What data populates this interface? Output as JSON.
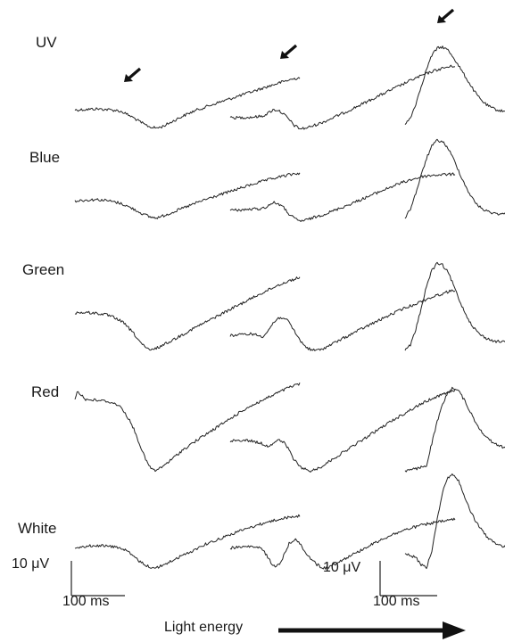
{
  "chart_data": {
    "type": "line",
    "row_labels": [
      "UV",
      "Blue",
      "Green",
      "Red",
      "White"
    ],
    "scale_bar_left": {
      "amplitude_label": "10 μV",
      "time_label": "100 ms"
    },
    "scale_bar_right": {
      "amplitude_label": "10 μV",
      "time_label": "100 ms"
    },
    "energy_axis_label": "Light energy",
    "trace_color": "#222222",
    "arrow_markers": [
      {
        "row": "UV",
        "column": 1
      },
      {
        "row": "UV",
        "column": 2
      },
      {
        "row": "UV",
        "column": 3
      }
    ],
    "traces": [
      {
        "row": "UV",
        "column": 1,
        "t": [
          0,
          20,
          40,
          60,
          80,
          90,
          100,
          110,
          120,
          130,
          140,
          150,
          160,
          170,
          180,
          190,
          200,
          210,
          220,
          230,
          240,
          260,
          280,
          300,
          320,
          340,
          360,
          380,
          400,
          420
        ],
        "v": [
          4.3,
          4.4,
          4.6,
          4.4,
          4.1,
          3.6,
          2.8,
          2.0,
          1.0,
          0.1,
          -0.6,
          -0.9,
          -0.7,
          0.0,
          0.8,
          1.6,
          2.4,
          3.1,
          3.8,
          4.4,
          4.9,
          6.0,
          7.0,
          8.0,
          9.0,
          10.0,
          11.0,
          12.0,
          12.9,
          13.6
        ]
      },
      {
        "row": "UV",
        "column": 2,
        "t": [
          0,
          20,
          40,
          60,
          70,
          80,
          90,
          100,
          110,
          120,
          130,
          140,
          150,
          160,
          170,
          180,
          190,
          200,
          220,
          240,
          260,
          280,
          300,
          320,
          340,
          360,
          380,
          400,
          410,
          420
        ],
        "v": [
          2.0,
          2.1,
          2.2,
          2.5,
          3.3,
          4.3,
          4.2,
          3.1,
          1.5,
          -0.2,
          -1.1,
          -1.0,
          -0.5,
          0.0,
          0.6,
          1.2,
          1.9,
          2.6,
          4.0,
          5.5,
          7.0,
          8.5,
          10.0,
          11.5,
          13.0,
          14.3,
          15.5,
          16.4,
          16.7,
          17.0
        ]
      },
      {
        "row": "UV",
        "column": 3,
        "t": [
          0,
          10,
          20,
          30,
          40,
          50,
          60,
          70,
          80,
          90,
          100,
          110,
          120,
          130,
          140,
          150,
          160,
          170,
          180,
          190,
          200,
          210,
          220,
          240,
          260,
          280,
          300,
          320,
          340,
          360
        ],
        "v": [
          0.0,
          2.0,
          6.0,
          11.0,
          16.0,
          20.0,
          22.0,
          22.4,
          21.5,
          19.5,
          17.0,
          14.5,
          12.0,
          9.5,
          7.5,
          6.0,
          5.0,
          4.4,
          4.0,
          3.8,
          3.7,
          3.7,
          3.6,
          3.6,
          3.7,
          3.8,
          3.6,
          3.8,
          3.6,
          3.7
        ]
      },
      {
        "row": "Blue",
        "column": 1,
        "t": [
          0,
          20,
          40,
          60,
          80,
          90,
          100,
          110,
          120,
          130,
          140,
          150,
          160,
          170,
          180,
          190,
          200,
          210,
          220,
          230,
          240,
          260,
          280,
          300,
          320,
          340,
          360,
          380,
          400,
          420
        ],
        "v": [
          4.8,
          5.0,
          5.2,
          4.9,
          4.3,
          3.8,
          3.1,
          2.4,
          1.6,
          0.8,
          0.2,
          -0.1,
          0.2,
          0.8,
          1.4,
          2.0,
          2.6,
          3.2,
          3.8,
          4.4,
          5.0,
          6.0,
          7.0,
          8.0,
          9.0,
          10.0,
          10.8,
          11.6,
          12.3,
          12.8
        ]
      },
      {
        "row": "Blue",
        "column": 2,
        "t": [
          0,
          20,
          40,
          60,
          70,
          80,
          90,
          100,
          110,
          120,
          130,
          140,
          150,
          160,
          170,
          180,
          190,
          200,
          220,
          240,
          260,
          280,
          300,
          320,
          340,
          360,
          380,
          400,
          410,
          420
        ],
        "v": [
          2.1,
          2.2,
          2.4,
          2.6,
          3.3,
          4.3,
          4.0,
          2.8,
          1.0,
          -0.3,
          -1.0,
          -0.8,
          -0.3,
          0.2,
          0.7,
          1.2,
          1.8,
          2.4,
          3.6,
          4.9,
          6.2,
          7.5,
          8.8,
          10.0,
          11.0,
          11.8,
          12.2,
          12.4,
          12.4,
          12.5
        ]
      },
      {
        "row": "Blue",
        "column": 3,
        "t": [
          0,
          10,
          20,
          30,
          40,
          50,
          60,
          70,
          80,
          90,
          100,
          110,
          120,
          130,
          140,
          150,
          160,
          170,
          180,
          190,
          200,
          210,
          220,
          240,
          260,
          280,
          300,
          320,
          340,
          360
        ],
        "v": [
          0.0,
          2.5,
          7.0,
          12.0,
          17.0,
          20.5,
          22.2,
          21.8,
          20.0,
          17.0,
          13.5,
          10.0,
          7.0,
          4.5,
          3.0,
          2.0,
          1.5,
          1.2,
          1.0,
          1.0,
          1.1,
          1.3,
          1.5,
          1.5,
          1.7,
          1.6,
          1.9,
          1.8,
          2.0,
          2.0
        ]
      },
      {
        "row": "Green",
        "column": 1,
        "t": [
          0,
          20,
          40,
          60,
          80,
          90,
          100,
          110,
          120,
          130,
          140,
          150,
          160,
          170,
          180,
          190,
          200,
          210,
          220,
          230,
          240,
          260,
          280,
          300,
          320,
          340,
          360,
          380,
          400,
          420
        ],
        "v": [
          10.8,
          10.9,
          10.7,
          10.2,
          9.0,
          8.0,
          6.5,
          4.8,
          2.8,
          1.0,
          0.0,
          0.5,
          1.2,
          2.0,
          2.8,
          3.6,
          4.5,
          5.3,
          6.2,
          7.0,
          7.8,
          9.4,
          11.0,
          12.6,
          14.2,
          15.8,
          17.3,
          18.8,
          20.0,
          21.0
        ]
      },
      {
        "row": "Green",
        "column": 2,
        "t": [
          0,
          20,
          40,
          60,
          70,
          80,
          90,
          100,
          110,
          120,
          130,
          140,
          150,
          160,
          170,
          180,
          190,
          200,
          220,
          240,
          260,
          280,
          300,
          320,
          340,
          360,
          380,
          400,
          410,
          420
        ],
        "v": [
          4.3,
          4.5,
          4.8,
          4.0,
          5.5,
          7.8,
          9.3,
          9.5,
          8.0,
          5.5,
          3.0,
          1.2,
          0.2,
          0.0,
          0.3,
          1.0,
          1.8,
          2.6,
          4.2,
          5.8,
          7.3,
          8.8,
          10.3,
          11.8,
          13.0,
          14.3,
          15.5,
          16.5,
          17.0,
          17.4
        ]
      },
      {
        "row": "Green",
        "column": 3,
        "t": [
          0,
          10,
          20,
          30,
          40,
          50,
          60,
          70,
          80,
          90,
          100,
          110,
          120,
          130,
          140,
          150,
          160,
          170,
          180,
          190,
          200,
          210,
          220,
          240,
          260,
          280,
          300,
          320,
          340,
          360
        ],
        "v": [
          0.0,
          1.5,
          6.0,
          12.0,
          18.5,
          23.0,
          25.0,
          24.5,
          22.5,
          19.0,
          15.0,
          11.5,
          8.5,
          6.2,
          4.6,
          3.6,
          3.0,
          2.6,
          2.5,
          2.4,
          2.5,
          2.4,
          2.5,
          2.6,
          2.5,
          2.6,
          2.5,
          2.6,
          2.5,
          2.5
        ]
      },
      {
        "row": "Red",
        "column": 1,
        "t": [
          0,
          5,
          20,
          40,
          60,
          80,
          90,
          100,
          110,
          120,
          130,
          140,
          150,
          160,
          170,
          180,
          190,
          200,
          220,
          240,
          260,
          280,
          300,
          320,
          340,
          360,
          380,
          400,
          410,
          420
        ],
        "v": [
          20.5,
          23.0,
          20.5,
          20.3,
          20.0,
          19.0,
          17.5,
          15.0,
          12.0,
          8.0,
          4.0,
          1.0,
          0.0,
          0.8,
          2.0,
          3.2,
          4.5,
          5.8,
          8.0,
          10.0,
          12.0,
          14.0,
          16.0,
          18.0,
          19.5,
          21.0,
          22.5,
          24.0,
          24.5,
          25.0
        ]
      },
      {
        "row": "Red",
        "column": 2,
        "t": [
          0,
          20,
          40,
          60,
          70,
          80,
          90,
          100,
          110,
          120,
          130,
          140,
          150,
          160,
          170,
          180,
          190,
          200,
          220,
          240,
          260,
          280,
          300,
          320,
          340,
          360,
          380,
          400,
          410,
          420
        ],
        "v": [
          8.5,
          8.8,
          8.6,
          7.8,
          7.0,
          8.0,
          8.8,
          8.2,
          6.0,
          3.0,
          1.2,
          0.4,
          0.0,
          0.4,
          1.2,
          2.2,
          3.2,
          4.2,
          6.2,
          8.2,
          10.2,
          12.2,
          14.2,
          16.0,
          17.8,
          19.5,
          21.0,
          22.2,
          22.8,
          23.2
        ]
      },
      {
        "row": "Red",
        "column": 3,
        "t": [
          0,
          20,
          40,
          50,
          60,
          70,
          80,
          90,
          100,
          110,
          120,
          130,
          140,
          150,
          160,
          170,
          180,
          190,
          200,
          220,
          240,
          260,
          280,
          300,
          320,
          340,
          360,
          380,
          400,
          420
        ],
        "v": [
          0.0,
          0.5,
          1.5,
          8.0,
          14.0,
          19.0,
          22.5,
          24.0,
          23.0,
          20.5,
          17.5,
          14.5,
          12.0,
          10.0,
          8.6,
          7.6,
          7.0,
          6.5,
          6.3,
          6.0,
          5.8,
          5.7,
          5.6,
          5.5,
          5.6,
          5.4,
          5.6,
          5.5,
          5.5,
          5.6
        ]
      },
      {
        "row": "White",
        "column": 1,
        "t": [
          0,
          20,
          40,
          60,
          80,
          90,
          100,
          110,
          120,
          130,
          140,
          150,
          160,
          170,
          180,
          190,
          200,
          210,
          220,
          230,
          240,
          260,
          280,
          300,
          320,
          340,
          360,
          380,
          400,
          420
        ],
        "v": [
          6.0,
          6.2,
          6.5,
          6.3,
          6.0,
          5.5,
          4.5,
          3.2,
          2.0,
          1.0,
          0.3,
          0.0,
          0.5,
          1.2,
          2.0,
          2.8,
          3.5,
          4.2,
          5.0,
          5.8,
          6.6,
          7.8,
          9.0,
          10.2,
          11.3,
          12.3,
          13.2,
          14.0,
          14.6,
          15.0
        ]
      },
      {
        "row": "White",
        "column": 2,
        "t": [
          0,
          20,
          40,
          60,
          70,
          80,
          90,
          100,
          110,
          120,
          130,
          140,
          150,
          160,
          170,
          180,
          190,
          200,
          220,
          240,
          260,
          280,
          300,
          320,
          340,
          360,
          380,
          400,
          410,
          420
        ],
        "v": [
          5.8,
          6.0,
          6.2,
          5.5,
          3.2,
          0.5,
          0.8,
          3.5,
          7.0,
          8.3,
          7.0,
          4.8,
          2.8,
          1.2,
          0.2,
          0.0,
          0.6,
          1.6,
          3.2,
          4.8,
          6.4,
          8.0,
          9.4,
          10.6,
          11.6,
          12.4,
          13.0,
          13.5,
          13.8,
          14.0
        ]
      },
      {
        "row": "White",
        "column": 3,
        "t": [
          0,
          20,
          30,
          40,
          50,
          60,
          70,
          80,
          90,
          100,
          110,
          120,
          130,
          140,
          150,
          160,
          170,
          180,
          190,
          200,
          220,
          240,
          260,
          280,
          300,
          320,
          340,
          360,
          380,
          400
        ],
        "v": [
          4.0,
          3.0,
          1.0,
          0.0,
          5.0,
          14.0,
          22.0,
          26.0,
          27.0,
          25.0,
          21.0,
          17.0,
          14.0,
          11.5,
          9.5,
          8.0,
          7.0,
          6.3,
          5.8,
          5.5,
          5.2,
          5.0,
          4.8,
          5.0,
          4.8,
          4.9,
          4.8,
          4.9,
          4.8,
          4.9
        ]
      }
    ]
  }
}
